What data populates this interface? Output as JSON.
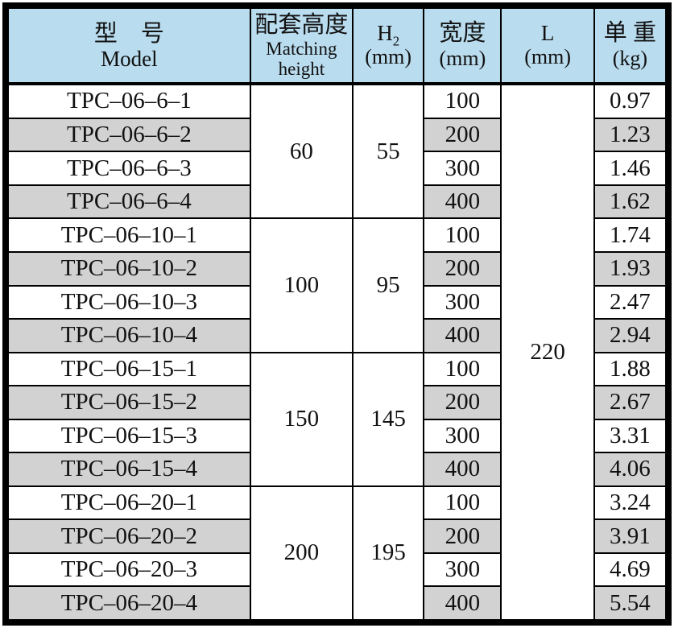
{
  "colors": {
    "header_bg": "#b9dcee",
    "row_alt_bg": "#d2d2d2",
    "border": "#000000",
    "page_bg": "#ffffff"
  },
  "table": {
    "header": {
      "model": {
        "zh": "型　号",
        "en": "Model"
      },
      "matching_height": {
        "zh": "配套高度",
        "en": "Matching height"
      },
      "h2": {
        "base": "H",
        "sub": "2",
        "unit": "(mm)"
      },
      "width": {
        "zh": "宽度",
        "unit": "(mm)"
      },
      "length": {
        "label": "L",
        "unit": "(mm)"
      },
      "unit_weight": {
        "zh": "单 重",
        "unit": "(kg)"
      }
    },
    "shared_length_mm": "220",
    "groups": [
      {
        "matching_height": "60",
        "h2": "55",
        "rows": [
          {
            "model": "TPC–06–6–1",
            "width": "100",
            "weight": "0.97"
          },
          {
            "model": "TPC–06–6–2",
            "width": "200",
            "weight": "1.23"
          },
          {
            "model": "TPC–06–6–3",
            "width": "300",
            "weight": "1.46"
          },
          {
            "model": "TPC–06–6–4",
            "width": "400",
            "weight": "1.62"
          }
        ]
      },
      {
        "matching_height": "100",
        "h2": "95",
        "rows": [
          {
            "model": "TPC–06–10–1",
            "width": "100",
            "weight": "1.74"
          },
          {
            "model": "TPC–06–10–2",
            "width": "200",
            "weight": "1.93"
          },
          {
            "model": "TPC–06–10–3",
            "width": "300",
            "weight": "2.47"
          },
          {
            "model": "TPC–06–10–4",
            "width": "400",
            "weight": "2.94"
          }
        ]
      },
      {
        "matching_height": "150",
        "h2": "145",
        "rows": [
          {
            "model": "TPC–06–15–1",
            "width": "100",
            "weight": "1.88"
          },
          {
            "model": "TPC–06–15–2",
            "width": "200",
            "weight": "2.67"
          },
          {
            "model": "TPC–06–15–3",
            "width": "300",
            "weight": "3.31"
          },
          {
            "model": "TPC–06–15–4",
            "width": "400",
            "weight": "4.06"
          }
        ]
      },
      {
        "matching_height": "200",
        "h2": "195",
        "rows": [
          {
            "model": "TPC–06–20–1",
            "width": "100",
            "weight": "3.24"
          },
          {
            "model": "TPC–06–20–2",
            "width": "200",
            "weight": "3.91"
          },
          {
            "model": "TPC–06–20–3",
            "width": "300",
            "weight": "4.69"
          },
          {
            "model": "TPC–06–20–4",
            "width": "400",
            "weight": "5.54"
          }
        ]
      }
    ]
  }
}
